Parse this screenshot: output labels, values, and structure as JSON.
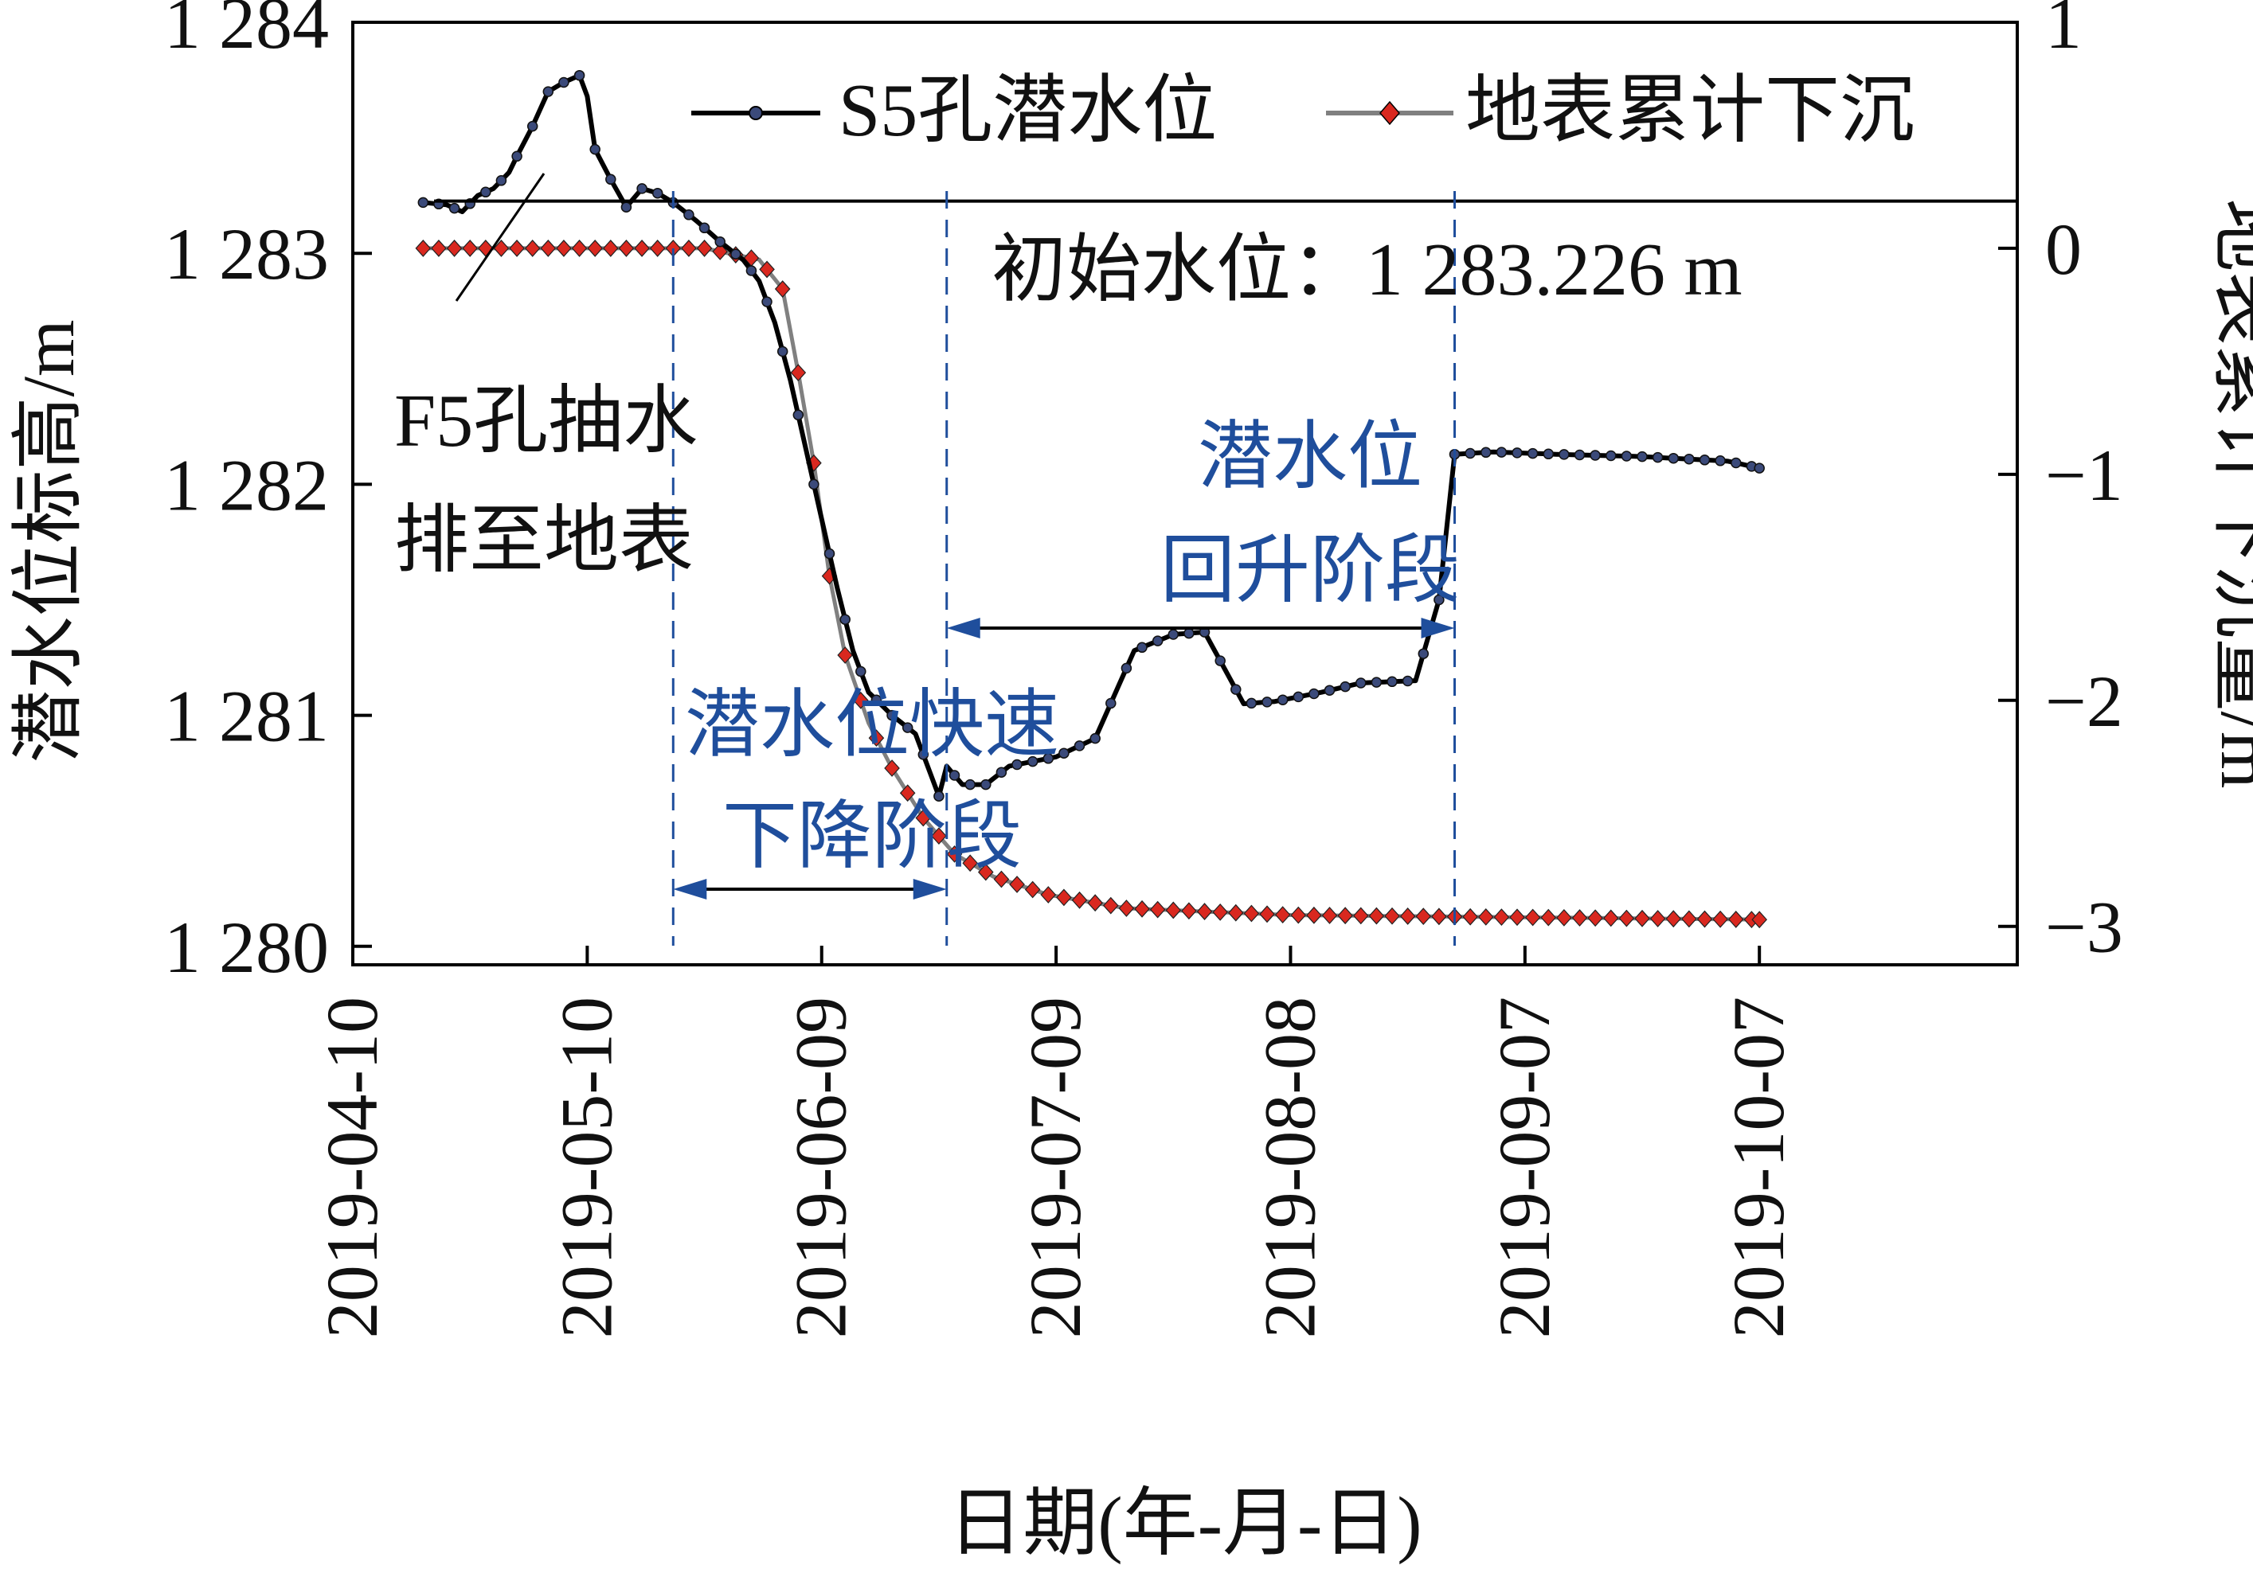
{
  "chart_data": {
    "type": "line",
    "xlabel": "日期(年-月-日)",
    "ylabel_left": "潜水位标高/m",
    "ylabel_right": "地表累计下沉量/m",
    "x_ticks": [
      "2019-04-10",
      "2019-05-10",
      "2019-06-09",
      "2019-07-09",
      "2019-08-08",
      "2019-09-07",
      "2019-10-07"
    ],
    "xlim": [
      "2019-04-10",
      "2019-11-09"
    ],
    "y_left_ticks": [
      "1 280",
      "1 281",
      "1 282",
      "1 283",
      "1 284"
    ],
    "y_left_lim": [
      1279.92,
      1284.0
    ],
    "y_right_ticks": [
      "−3",
      "−2",
      "−1",
      "0",
      "1"
    ],
    "y_right_lim": [
      -3.17,
      1.0
    ],
    "grid": false,
    "legend_position": "top-right",
    "series": [
      {
        "name": "S5孔潜水位",
        "axis": "left",
        "color": "#000000",
        "marker_color": "#3b4a7a",
        "points": [
          [
            "2019-04-19",
            1283.22
          ],
          [
            "2019-04-22",
            1283.21
          ],
          [
            "2019-04-24",
            1283.18
          ],
          [
            "2019-04-26",
            1283.25
          ],
          [
            "2019-04-28",
            1283.28
          ],
          [
            "2019-04-30",
            1283.35
          ],
          [
            "2019-05-01",
            1283.42
          ],
          [
            "2019-05-03",
            1283.55
          ],
          [
            "2019-05-05",
            1283.7
          ],
          [
            "2019-05-07",
            1283.74
          ],
          [
            "2019-05-09",
            1283.77
          ],
          [
            "2019-05-10",
            1283.68
          ],
          [
            "2019-05-11",
            1283.45
          ],
          [
            "2019-05-13",
            1283.32
          ],
          [
            "2019-05-15",
            1283.2
          ],
          [
            "2019-05-17",
            1283.28
          ],
          [
            "2019-05-19",
            1283.26
          ],
          [
            "2019-05-21",
            1283.22
          ],
          [
            "2019-05-24",
            1283.14
          ],
          [
            "2019-05-27",
            1283.05
          ],
          [
            "2019-05-30",
            1282.97
          ],
          [
            "2019-06-01",
            1282.88
          ],
          [
            "2019-06-03",
            1282.7
          ],
          [
            "2019-06-05",
            1282.45
          ],
          [
            "2019-06-07",
            1282.15
          ],
          [
            "2019-06-09",
            1281.85
          ],
          [
            "2019-06-11",
            1281.55
          ],
          [
            "2019-06-13",
            1281.28
          ],
          [
            "2019-06-15",
            1281.1
          ],
          [
            "2019-06-18",
            1281.0
          ],
          [
            "2019-06-21",
            1280.92
          ],
          [
            "2019-06-24",
            1280.65
          ],
          [
            "2019-06-25",
            1280.78
          ],
          [
            "2019-06-27",
            1280.7
          ],
          [
            "2019-06-30",
            1280.7
          ],
          [
            "2019-07-03",
            1280.78
          ],
          [
            "2019-07-09",
            1280.82
          ],
          [
            "2019-07-14",
            1280.9
          ],
          [
            "2019-07-19",
            1281.28
          ],
          [
            "2019-07-24",
            1281.35
          ],
          [
            "2019-07-28",
            1281.36
          ],
          [
            "2019-08-02",
            1281.05
          ],
          [
            "2019-08-06",
            1281.06
          ],
          [
            "2019-08-12",
            1281.1
          ],
          [
            "2019-08-17",
            1281.14
          ],
          [
            "2019-08-24",
            1281.15
          ],
          [
            "2019-08-27",
            1281.5
          ],
          [
            "2019-08-29",
            1282.13
          ],
          [
            "2019-09-03",
            1282.14
          ],
          [
            "2019-09-11",
            1282.13
          ],
          [
            "2019-09-22",
            1282.12
          ],
          [
            "2019-10-03",
            1282.1
          ],
          [
            "2019-10-07",
            1282.07
          ]
        ]
      },
      {
        "name": "地表累计下沉",
        "axis": "right",
        "color": "#808080",
        "marker_color": "#d9281f",
        "points": [
          [
            "2019-04-19",
            0.0
          ],
          [
            "2019-05-25",
            0.0
          ],
          [
            "2019-06-01",
            -0.05
          ],
          [
            "2019-06-04",
            -0.18
          ],
          [
            "2019-06-06",
            -0.55
          ],
          [
            "2019-06-08",
            -0.95
          ],
          [
            "2019-06-10",
            -1.45
          ],
          [
            "2019-06-12",
            -1.8
          ],
          [
            "2019-06-15",
            -2.1
          ],
          [
            "2019-06-18",
            -2.3
          ],
          [
            "2019-06-22",
            -2.52
          ],
          [
            "2019-06-26",
            -2.68
          ],
          [
            "2019-07-01",
            -2.78
          ],
          [
            "2019-07-08",
            -2.86
          ],
          [
            "2019-07-18",
            -2.92
          ],
          [
            "2019-08-08",
            -2.95
          ],
          [
            "2019-10-07",
            -2.97
          ]
        ]
      }
    ],
    "annotations": [
      {
        "id": "initial_level_value",
        "value": 1283.226
      },
      {
        "id": "initial_level_text",
        "text": "初始水位：1 283.226 m"
      },
      {
        "id": "pumping_line1",
        "text": "F5孔抽水"
      },
      {
        "id": "pumping_line2",
        "text": "排至地表"
      },
      {
        "id": "rise_line1",
        "text": "潜水位"
      },
      {
        "id": "rise_line2",
        "text": "回升阶段"
      },
      {
        "id": "drop_line1",
        "text": "潜水位快速"
      },
      {
        "id": "drop_line2",
        "text": "下降阶段"
      }
    ],
    "phase_boundaries": [
      "2019-05-21",
      "2019-06-25",
      "2019-08-29"
    ],
    "phases": [
      {
        "name": "drop",
        "from": "2019-05-21",
        "to": "2019-06-25"
      },
      {
        "name": "rise",
        "from": "2019-06-25",
        "to": "2019-08-29"
      }
    ],
    "annotation_color": "#1f4e9c"
  }
}
